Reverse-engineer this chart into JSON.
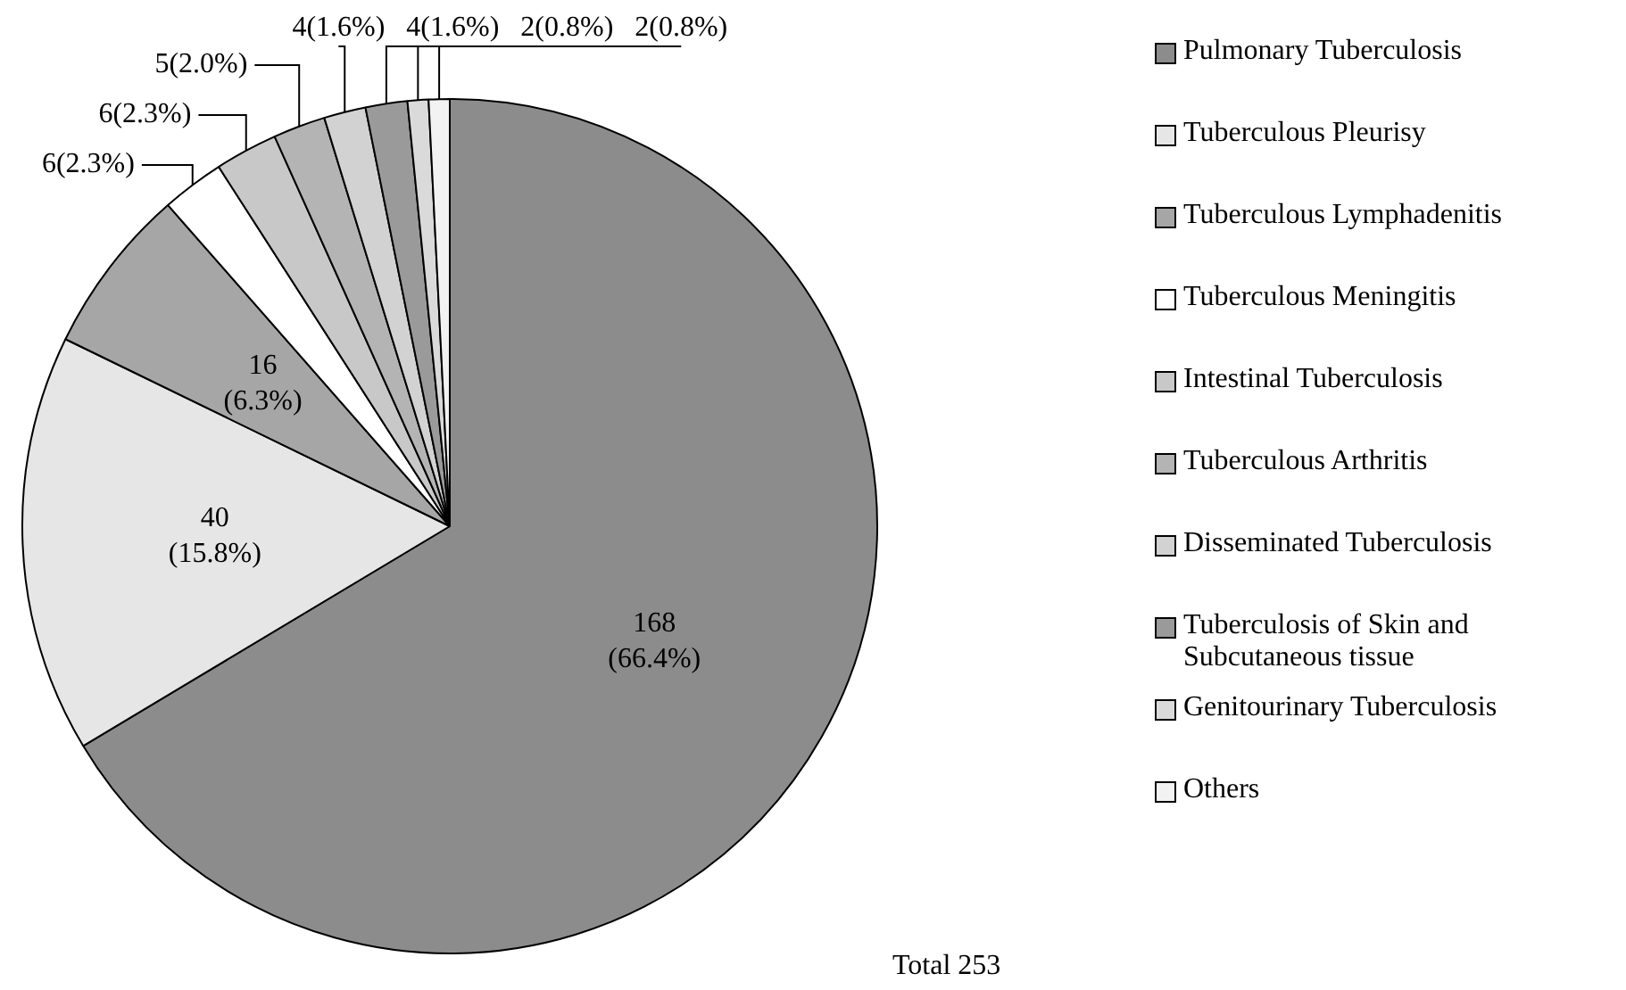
{
  "chart_data": {
    "type": "pie",
    "categories": [
      "Pulmonary Tuberculosis",
      "Tuberculous Pleurisy",
      "Tuberculous Lymphadenitis",
      "Tuberculous Meningitis",
      "Intestinal Tuberculosis",
      "Tuberculous  Arthritis",
      "Disseminated Tuberculosis",
      "Tuberculosis of Skin and Subcutaneous tissue",
      "Genitourinary Tuberculosis",
      "Others"
    ],
    "values": [
      168,
      40,
      16,
      6,
      6,
      5,
      4,
      4,
      2,
      2
    ],
    "colors": [
      "#8c8c8c",
      "#e6e6e6",
      "#a6a6a6",
      "#ffffff",
      "#c8c8c8",
      "#b4b4b4",
      "#d2d2d2",
      "#9a9a9a",
      "#dadada",
      "#f2f2f2"
    ],
    "value_labels": [
      "168 (66.4%)",
      "40 (15.8%)",
      "16 (6.3%)",
      "6(2.3%)",
      "6(2.3%)",
      "5(2.0%)",
      "4(1.6%)",
      "4(1.6%)",
      "2(0.8%)",
      "2(0.8%)"
    ],
    "legend": "right",
    "annotations": [
      "Total 253"
    ]
  }
}
